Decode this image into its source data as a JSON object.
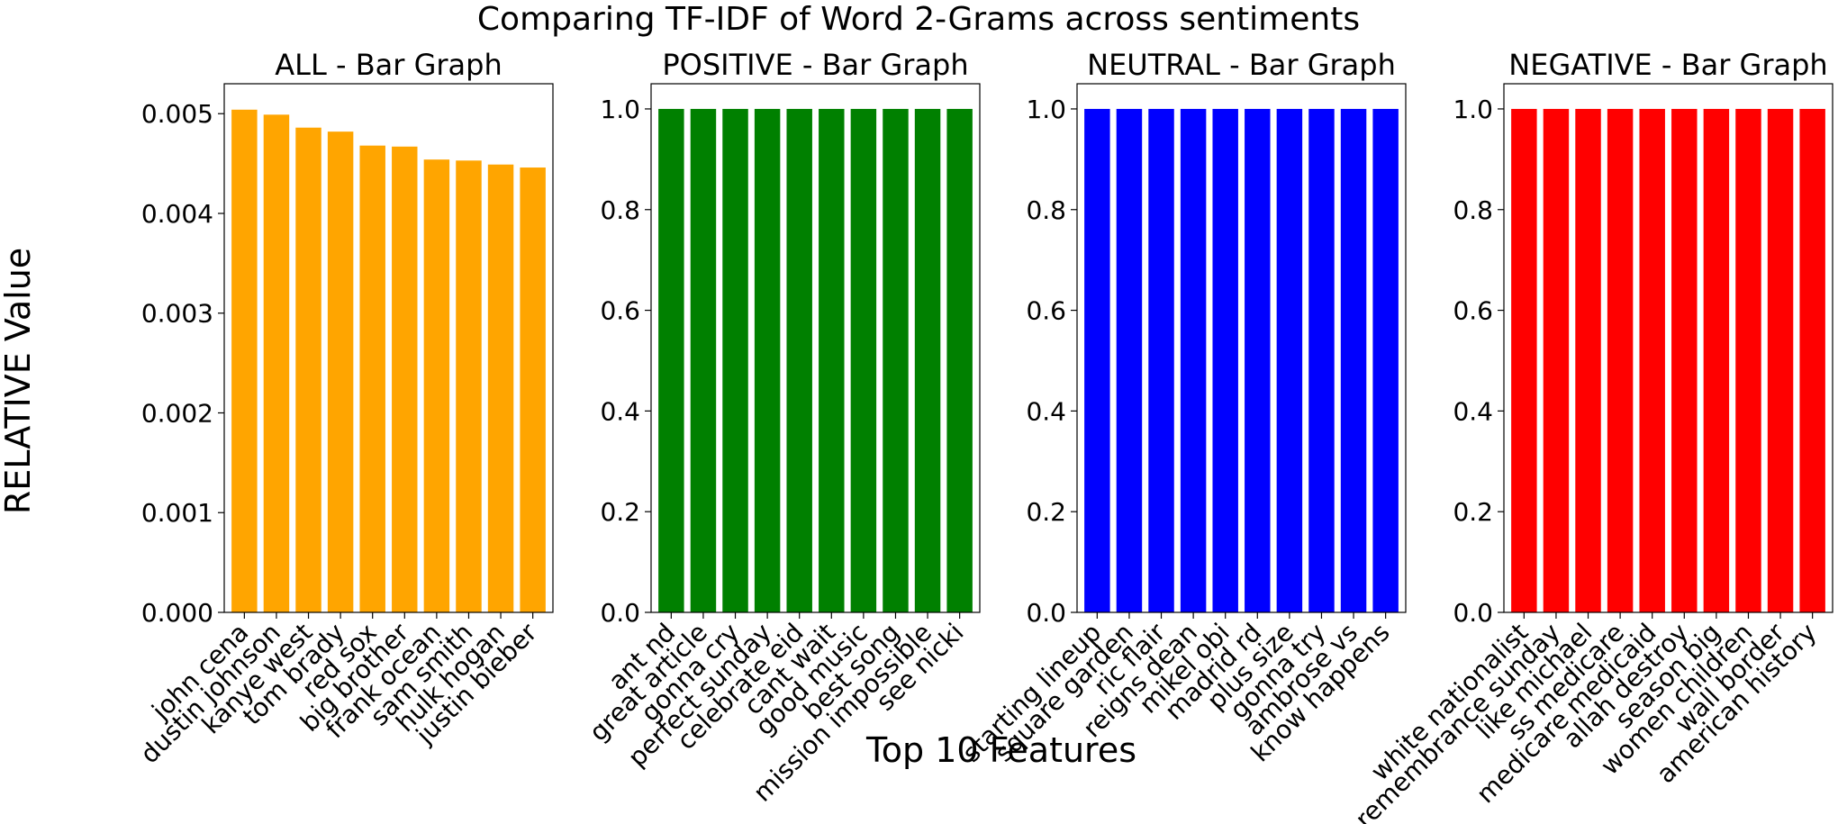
{
  "figure": {
    "title": "Comparing TF-IDF of Word 2-Grams across sentiments",
    "ylabel": "RELATIVE Value",
    "xlabel": "Top 10 Features"
  },
  "chart_data": [
    {
      "type": "bar",
      "title": "ALL - Bar Graph",
      "color": "#ffa500",
      "categories": [
        "john cena",
        "dustin johnson",
        "kanye west",
        "tom brady",
        "red sox",
        "big brother",
        "frank ocean",
        "sam smith",
        "hulk hogan",
        "justin bieber"
      ],
      "values": [
        0.00504,
        0.00499,
        0.00486,
        0.00482,
        0.00468,
        0.00467,
        0.00454,
        0.00453,
        0.00449,
        0.00446
      ],
      "ylim": [
        0,
        0.0053
      ],
      "yticks": [
        0,
        0.001,
        0.002,
        0.003,
        0.004,
        0.005
      ],
      "ytick_labels": [
        "0.000",
        "0.001",
        "0.002",
        "0.003",
        "0.004",
        "0.005"
      ],
      "grid": false
    },
    {
      "type": "bar",
      "title": "POSITIVE - Bar Graph",
      "color": "#008000",
      "categories": [
        "ant nd",
        "great article",
        "gonna cry",
        "perfect sunday",
        "celebrate eid",
        "cant wait",
        "good music",
        "best song",
        "mission impossible",
        "see nicki"
      ],
      "values": [
        1,
        1,
        1,
        1,
        1,
        1,
        1,
        1,
        1,
        1
      ],
      "ylim": [
        0,
        1.05
      ],
      "yticks": [
        0,
        0.2,
        0.4,
        0.6,
        0.8,
        1.0
      ],
      "ytick_labels": [
        "0.0",
        "0.2",
        "0.4",
        "0.6",
        "0.8",
        "1.0"
      ],
      "grid": false
    },
    {
      "type": "bar",
      "title": "NEUTRAL - Bar Graph",
      "color": "#0000ff",
      "categories": [
        "starting lineup",
        "square garden",
        "ric flair",
        "reigns dean",
        "mikel obi",
        "madrid rd",
        "plus size",
        "gonna try",
        "ambrose vs",
        "know happens"
      ],
      "values": [
        1,
        1,
        1,
        1,
        1,
        1,
        1,
        1,
        1,
        1
      ],
      "ylim": [
        0,
        1.05
      ],
      "yticks": [
        0,
        0.2,
        0.4,
        0.6,
        0.8,
        1.0
      ],
      "ytick_labels": [
        "0.0",
        "0.2",
        "0.4",
        "0.6",
        "0.8",
        "1.0"
      ],
      "grid": false
    },
    {
      "type": "bar",
      "title": "NEGATIVE - Bar Graph",
      "color": "#ff0000",
      "categories": [
        "white nationalist",
        "remembrance sunday",
        "like michael",
        "ss medicare",
        "medicare medicaid",
        "allah destroy",
        "season big",
        "women children",
        "wall border",
        "american history"
      ],
      "values": [
        1,
        1,
        1,
        1,
        1,
        1,
        1,
        1,
        1,
        1
      ],
      "ylim": [
        0,
        1.05
      ],
      "yticks": [
        0,
        0.2,
        0.4,
        0.6,
        0.8,
        1.0
      ],
      "ytick_labels": [
        "0.0",
        "0.2",
        "0.4",
        "0.6",
        "0.8",
        "1.0"
      ],
      "grid": false
    }
  ]
}
